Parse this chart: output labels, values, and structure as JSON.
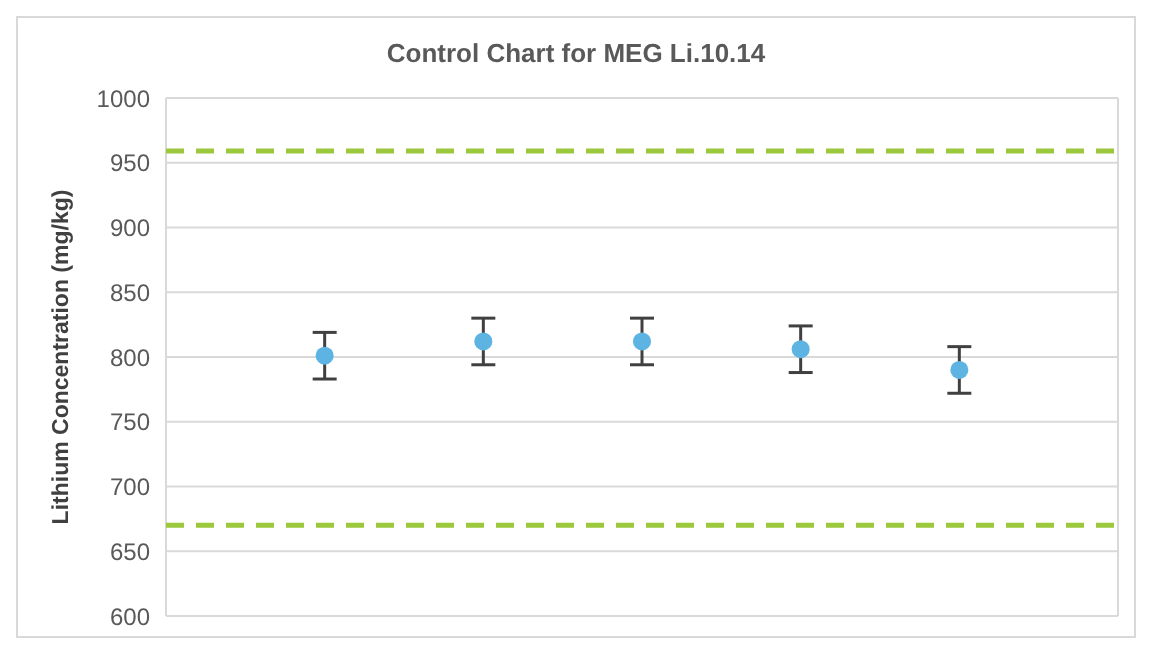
{
  "chart_data": {
    "type": "scatter",
    "title": "Control Chart for MEG Li.10.14",
    "ylabel": "Lithium Concentration (mg/kg)",
    "categories": [
      null,
      null,
      null,
      null,
      null
    ],
    "values": [
      801,
      812,
      812,
      806,
      790
    ],
    "errors": [
      18,
      18,
      18,
      18,
      18
    ],
    "color": "#5db4e3",
    "marker": "circle",
    "ref_lines": [
      {
        "axis": "y",
        "value": 959,
        "color": "#9bc83c",
        "line_style": "dashed"
      },
      {
        "axis": "y",
        "value": 670,
        "color": "#9bc83c",
        "line_style": "dashed"
      }
    ],
    "ylim": [
      600,
      1000
    ],
    "yticks": [
      600,
      650,
      700,
      750,
      800,
      850,
      900,
      950,
      1000
    ],
    "grid": true,
    "tick_labels": "y"
  }
}
